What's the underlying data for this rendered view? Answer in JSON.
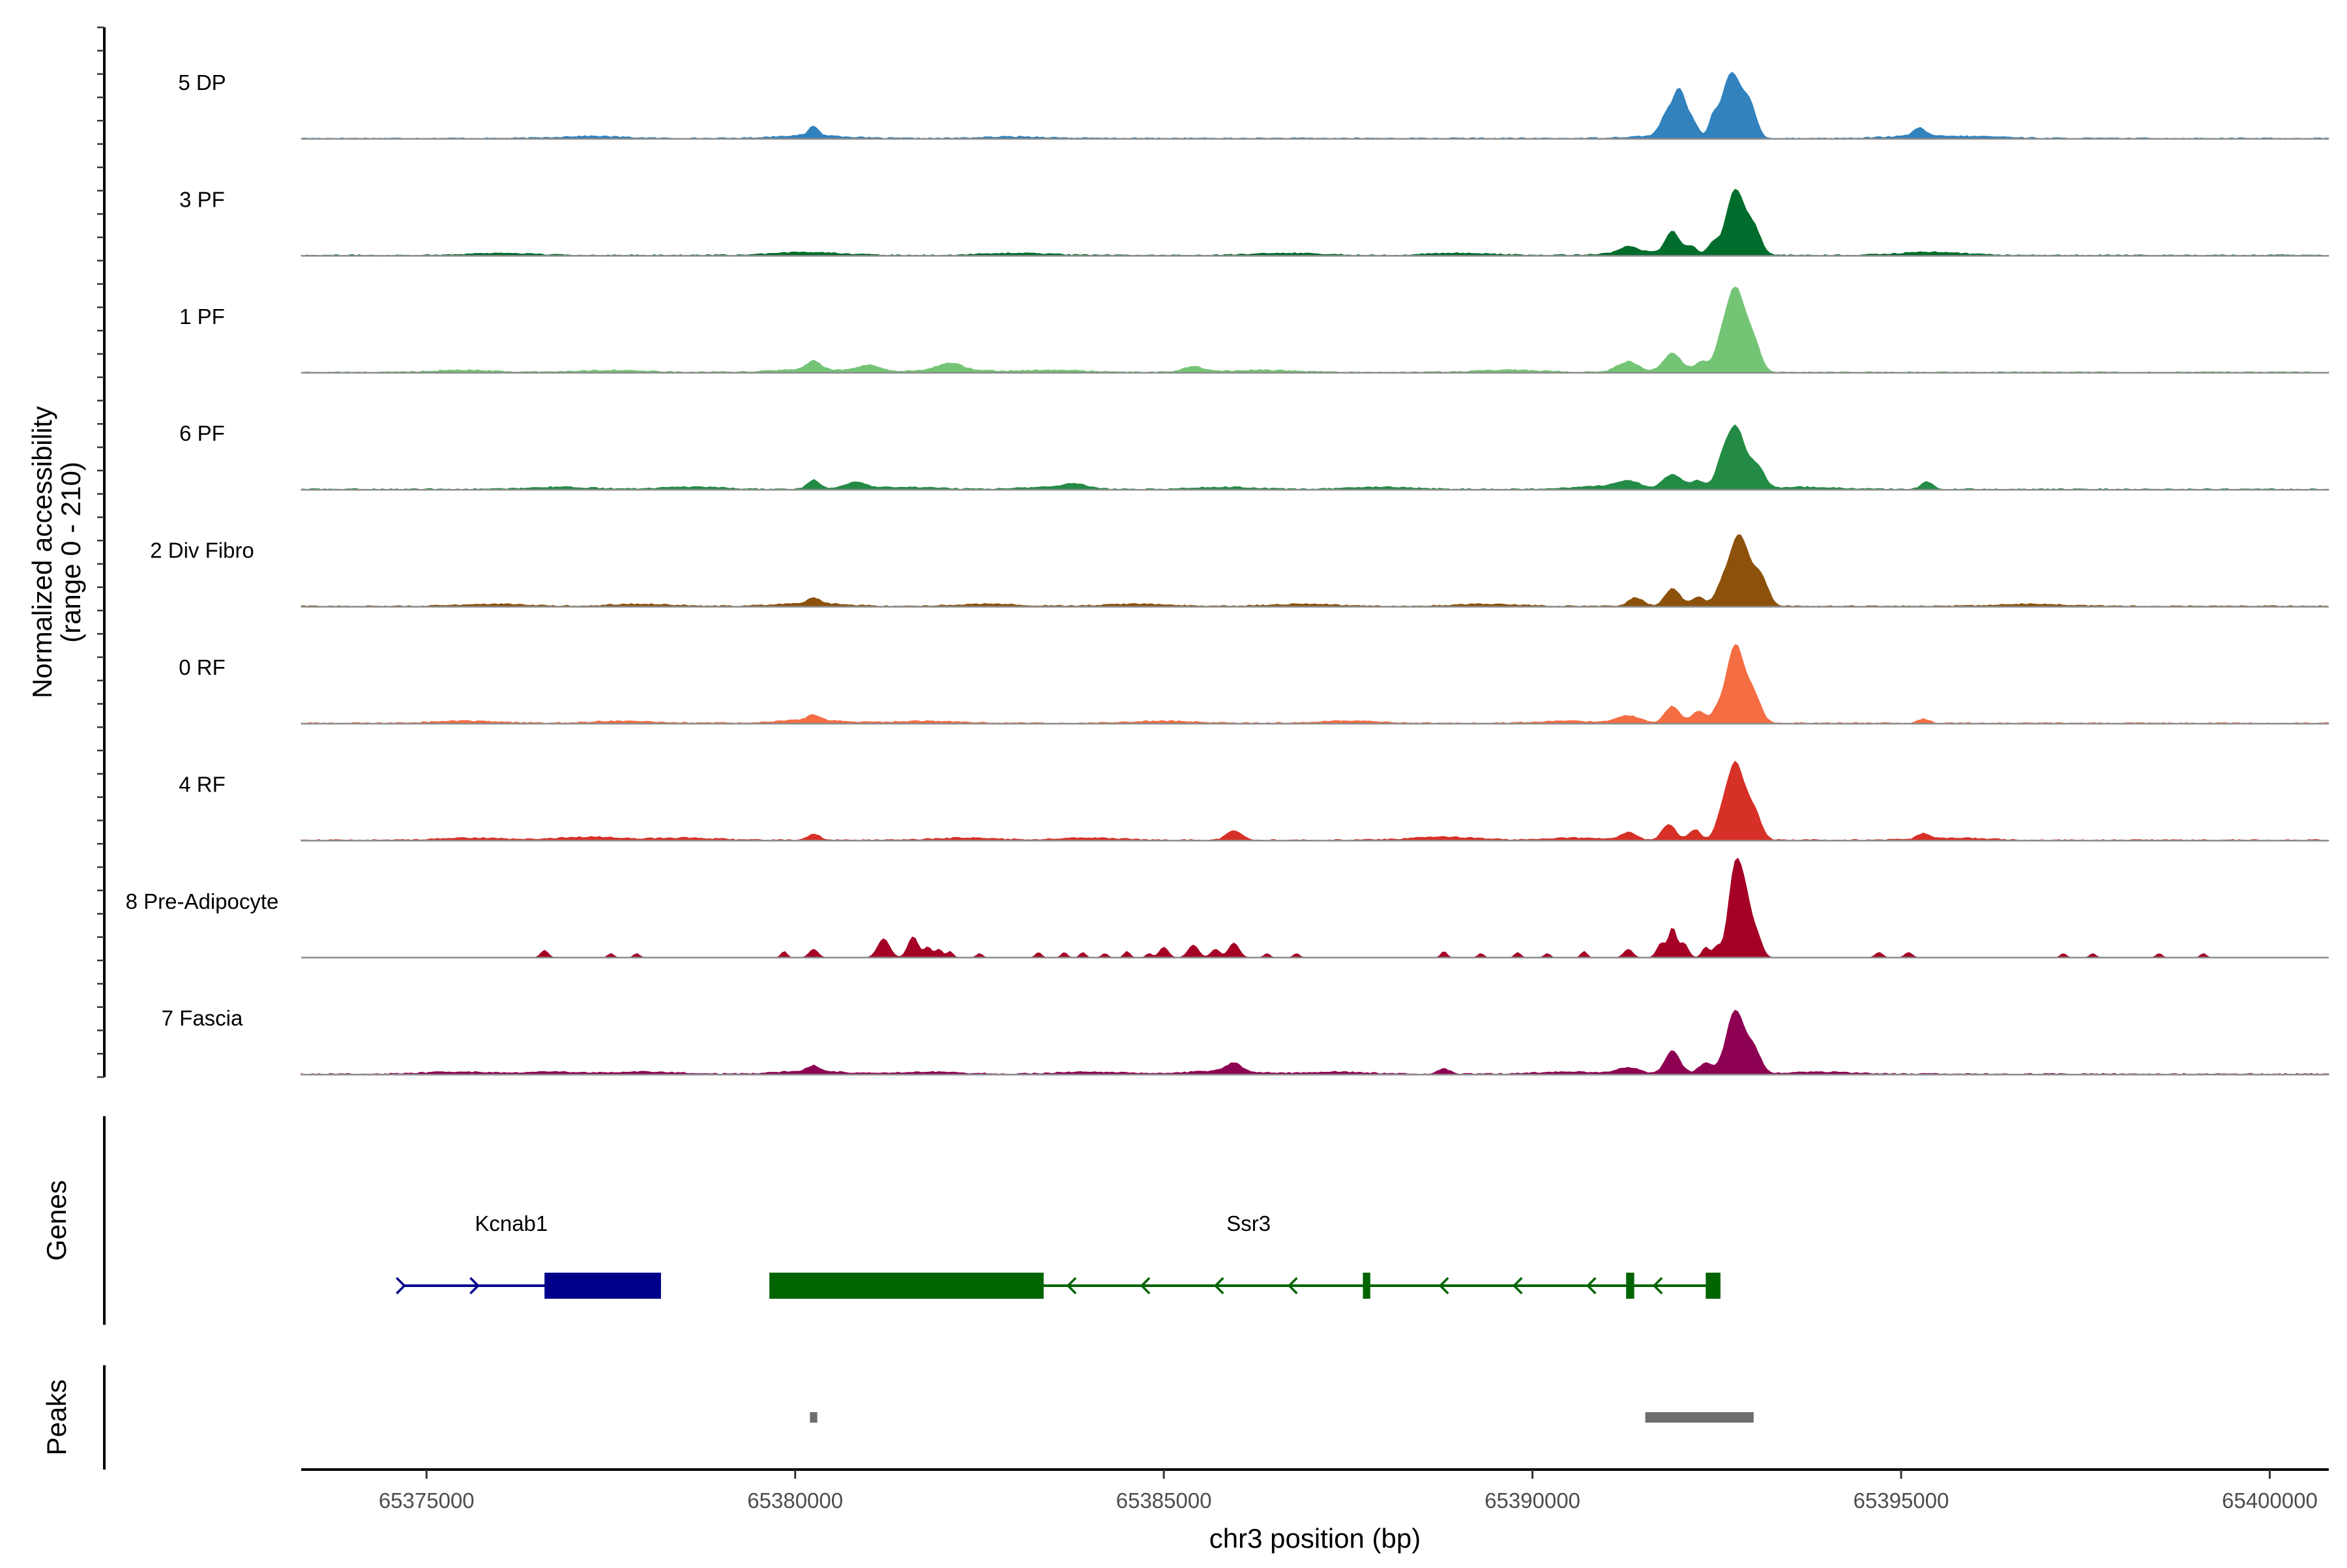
{
  "chart_data": {
    "type": "area",
    "title": "",
    "xlabel": "chr3 position (bp)",
    "ylabel": "Normalized accessibility\n(range 0 - 210)",
    "y_range_label_max": 210,
    "xlim": [
      65373300,
      65400800
    ],
    "x_ticks": [
      65375000,
      65380000,
      65385000,
      65390000,
      65395000,
      65400000
    ],
    "grid": false,
    "series": [
      {
        "name": "5 DP",
        "color": "#3182bd",
        "baseline_peaks": [
          [
            65377220,
            2
          ],
          [
            65380200,
            3
          ],
          [
            65383000,
            1.5
          ],
          [
            65391700,
            2
          ],
          [
            65395200,
            2
          ],
          [
            65396100,
            1.5
          ]
        ],
        "peaks": [
          [
            65380250,
            9,
            60
          ],
          [
            65391850,
            25,
            100
          ],
          [
            65392000,
            35,
            70
          ],
          [
            65392150,
            18,
            80
          ],
          [
            65392450,
            15,
            60
          ],
          [
            65392700,
            62,
            130
          ],
          [
            65392950,
            28,
            90
          ],
          [
            65395250,
            8,
            80
          ]
        ]
      },
      {
        "name": "3 PF",
        "color": "#006d2c",
        "baseline_peaks": [
          [
            65376000,
            2
          ],
          [
            65380200,
            3
          ],
          [
            65383000,
            2
          ],
          [
            65386700,
            2
          ],
          [
            65389000,
            2
          ],
          [
            65391500,
            3
          ],
          [
            65395400,
            3
          ]
        ],
        "peaks": [
          [
            65391300,
            6,
            120
          ],
          [
            65391900,
            21,
            90
          ],
          [
            65392150,
            8,
            80
          ],
          [
            65392450,
            11,
            70
          ],
          [
            65392750,
            62,
            120
          ],
          [
            65393000,
            25,
            100
          ]
        ]
      },
      {
        "name": "1 PF",
        "color": "#74c476",
        "baseline_peaks": [
          [
            65375500,
            2
          ],
          [
            65377500,
            2
          ],
          [
            65380200,
            3
          ],
          [
            65382100,
            3
          ],
          [
            65383500,
            2
          ],
          [
            65386300,
            2
          ],
          [
            65389700,
            2
          ]
        ],
        "peaks": [
          [
            65380250,
            8,
            90
          ],
          [
            65381000,
            6,
            150
          ],
          [
            65382100,
            6,
            150
          ],
          [
            65385400,
            5,
            150
          ],
          [
            65391300,
            10,
            150
          ],
          [
            65391900,
            18,
            120
          ],
          [
            65392300,
            10,
            100
          ],
          [
            65392550,
            15,
            80
          ],
          [
            65392750,
            80,
            130
          ],
          [
            65393000,
            25,
            100
          ]
        ]
      },
      {
        "name": "6 PF",
        "color": "#238b45",
        "baseline_peaks": [
          [
            65376800,
            2
          ],
          [
            65378600,
            2
          ],
          [
            65381500,
            2
          ],
          [
            65383500,
            2
          ],
          [
            65385800,
            2
          ],
          [
            65388000,
            2
          ],
          [
            65391000,
            3
          ],
          [
            65393700,
            2
          ]
        ],
        "peaks": [
          [
            65380250,
            9,
            80
          ],
          [
            65380800,
            6,
            150
          ],
          [
            65383800,
            4,
            150
          ],
          [
            65391300,
            6,
            150
          ],
          [
            65391900,
            14,
            120
          ],
          [
            65392250,
            8,
            100
          ],
          [
            65392550,
            14,
            80
          ],
          [
            65392750,
            60,
            130
          ],
          [
            65393050,
            20,
            100
          ],
          [
            65395350,
            7,
            80
          ]
        ]
      },
      {
        "name": "2 Div Fibro",
        "color": "#8c510a",
        "baseline_peaks": [
          [
            65375900,
            2
          ],
          [
            65377900,
            2
          ],
          [
            65380200,
            3
          ],
          [
            65382600,
            2
          ],
          [
            65384600,
            2
          ],
          [
            65386900,
            2
          ],
          [
            65389400,
            2
          ],
          [
            65396800,
            2
          ]
        ],
        "peaks": [
          [
            65380250,
            5,
            80
          ],
          [
            65391400,
            8,
            100
          ],
          [
            65391900,
            17,
            100
          ],
          [
            65392250,
            9,
            90
          ],
          [
            65392550,
            11,
            80
          ],
          [
            65392800,
            68,
            140
          ],
          [
            65393100,
            25,
            100
          ]
        ]
      },
      {
        "name": "0 RF",
        "color": "#f46d43",
        "baseline_peaks": [
          [
            65375500,
            2
          ],
          [
            65377700,
            2
          ],
          [
            65380200,
            3
          ],
          [
            65381800,
            2
          ],
          [
            65385000,
            2
          ],
          [
            65387500,
            2
          ],
          [
            65390500,
            2
          ]
        ],
        "peaks": [
          [
            65380250,
            5,
            80
          ],
          [
            65391300,
            7,
            150
          ],
          [
            65391900,
            16,
            100
          ],
          [
            65392250,
            11,
            90
          ],
          [
            65392500,
            9,
            80
          ],
          [
            65392750,
            74,
            120
          ],
          [
            65393000,
            25,
            100
          ],
          [
            65395300,
            4,
            80
          ]
        ]
      },
      {
        "name": "4 RF",
        "color": "#d73027",
        "baseline_peaks": [
          [
            65375600,
            2
          ],
          [
            65377200,
            3
          ],
          [
            65378500,
            2
          ],
          [
            65382300,
            2
          ],
          [
            65384000,
            2
          ],
          [
            65388800,
            3
          ],
          [
            65390600,
            2
          ],
          [
            65395700,
            2
          ]
        ],
        "peaks": [
          [
            65380250,
            6,
            80
          ],
          [
            65385950,
            9,
            100
          ],
          [
            65391300,
            7,
            100
          ],
          [
            65391850,
            15,
            90
          ],
          [
            65392200,
            10,
            80
          ],
          [
            65392550,
            13,
            80
          ],
          [
            65392750,
            73,
            120
          ],
          [
            65393000,
            26,
            100
          ],
          [
            65395300,
            5,
            80
          ]
        ]
      },
      {
        "name": "8 Pre-Adipocyte",
        "color": "#a50026",
        "baseline_peaks": [],
        "peaks": [
          [
            65376600,
            7,
            50
          ],
          [
            65377500,
            4,
            40
          ],
          [
            65377850,
            4,
            40
          ],
          [
            65379850,
            6,
            40
          ],
          [
            65380250,
            8,
            60
          ],
          [
            65381200,
            18,
            80
          ],
          [
            65381600,
            20,
            70
          ],
          [
            65381800,
            10,
            50
          ],
          [
            65381950,
            8,
            50
          ],
          [
            65382100,
            6,
            40
          ],
          [
            65382500,
            4,
            40
          ],
          [
            65383300,
            5,
            40
          ],
          [
            65383650,
            5,
            40
          ],
          [
            65383900,
            5,
            40
          ],
          [
            65384200,
            4,
            40
          ],
          [
            65384500,
            6,
            40
          ],
          [
            65384800,
            4,
            40
          ],
          [
            65385000,
            10,
            60
          ],
          [
            65385400,
            12,
            70
          ],
          [
            65385700,
            8,
            60
          ],
          [
            65385950,
            14,
            70
          ],
          [
            65386400,
            4,
            40
          ],
          [
            65386800,
            4,
            40
          ],
          [
            65388800,
            6,
            40
          ],
          [
            65389300,
            4,
            40
          ],
          [
            65389800,
            5,
            40
          ],
          [
            65390200,
            4,
            40
          ],
          [
            65390700,
            6,
            40
          ],
          [
            65391300,
            8,
            60
          ],
          [
            65391750,
            14,
            60
          ],
          [
            65391900,
            28,
            50
          ],
          [
            65392050,
            14,
            60
          ],
          [
            65392350,
            10,
            50
          ],
          [
            65392500,
            10,
            50
          ],
          [
            65392750,
            85,
            90
          ],
          [
            65392900,
            45,
            80
          ],
          [
            65393050,
            18,
            70
          ],
          [
            65394700,
            5,
            50
          ],
          [
            65395100,
            5,
            50
          ],
          [
            65397200,
            4,
            40
          ],
          [
            65397600,
            4,
            40
          ],
          [
            65398500,
            4,
            40
          ],
          [
            65399100,
            4,
            40
          ]
        ]
      },
      {
        "name": "7 Fascia",
        "color": "#8e0152",
        "baseline_peaks": [
          [
            65375400,
            2
          ],
          [
            65376700,
            2
          ],
          [
            65378000,
            2
          ],
          [
            65380200,
            3
          ],
          [
            65381800,
            2
          ],
          [
            65384000,
            2
          ],
          [
            65385800,
            3
          ],
          [
            65387300,
            2
          ],
          [
            65390500,
            2
          ],
          [
            65393900,
            2
          ]
        ],
        "peaks": [
          [
            65380250,
            5,
            80
          ],
          [
            65385950,
            8,
            100
          ],
          [
            65388800,
            5,
            80
          ],
          [
            65391300,
            6,
            150
          ],
          [
            65391900,
            22,
            100
          ],
          [
            65392350,
            10,
            100
          ],
          [
            65392750,
            60,
            120
          ],
          [
            65393000,
            22,
            100
          ]
        ]
      }
    ],
    "genes": [
      {
        "name": "Kcnab1",
        "color": "#00008b",
        "strand": "+",
        "label_x": 65376150,
        "line": [
          65374700,
          65378180
        ],
        "exons": [
          [
            65376600,
            65378180
          ]
        ],
        "arrows": [
          65374700,
          65375700
        ]
      },
      {
        "name": "Ssr3",
        "color": "#006400",
        "strand": "-",
        "label_x": 65386150,
        "line": [
          65379650,
          65392550
        ],
        "exons": [
          [
            65379650,
            65383370
          ],
          [
            65387700,
            65387800
          ],
          [
            65391270,
            65391380
          ],
          [
            65392350,
            65392550
          ]
        ],
        "arrows": [
          65383700,
          65384700,
          65385700,
          65386700,
          65388750,
          65389750,
          65390750,
          65391650
        ]
      }
    ],
    "peaks_track": {
      "color": "#6e6e6e",
      "regions": [
        [
          65380200,
          65380300
        ],
        [
          65391530,
          65393000
        ]
      ]
    },
    "track_labels": {
      "genes": "Genes",
      "peaks": "Peaks"
    }
  }
}
